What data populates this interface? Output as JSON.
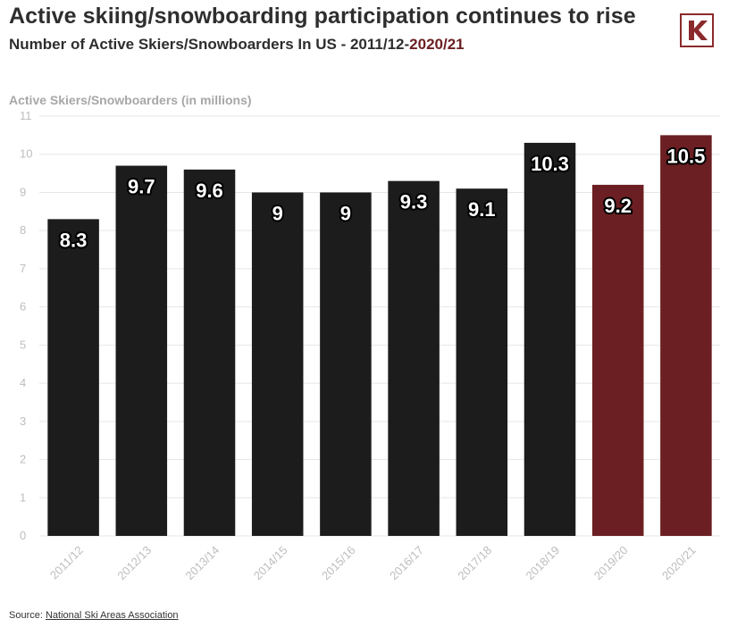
{
  "header": {
    "title": "Active skiing/snowboarding participation continues to rise",
    "subtitle_prefix": "Number of Active Skiers/Snowboarders In US - ",
    "subtitle_start": "2011/12",
    "subtitle_dash": "-",
    "subtitle_end": "2020/21"
  },
  "logo": {
    "icon": "k-logo-icon",
    "letter": "K"
  },
  "colors": {
    "bar_default": "#1c1c1c",
    "bar_highlight": "#6b1f22",
    "accent": "#6b1f22",
    "grid": "#e6e6e6",
    "tick": "#bdbdbd"
  },
  "footer": {
    "source_label": "Source: ",
    "source_link": "National Ski Areas Association"
  },
  "chart_data": {
    "type": "bar",
    "title": "Active skiing/snowboarding participation continues to rise",
    "subtitle": "Number of Active Skiers/Snowboarders In US - 2011/12-2020/21",
    "xlabel": "",
    "ylabel": "Active Skiers/Snowboarders (in millions)",
    "ylim": [
      0,
      11
    ],
    "yticks": [
      "0",
      "1",
      "2",
      "3",
      "4",
      "5",
      "6",
      "7",
      "8",
      "9",
      "10",
      "11"
    ],
    "grid": true,
    "legend": "none",
    "categories": [
      "2011/12",
      "2012/13",
      "2013/14",
      "2014/15",
      "2015/16",
      "2016/17",
      "2017/18",
      "2018/19",
      "2019/20",
      "2020/21"
    ],
    "values": [
      8.3,
      9.7,
      9.6,
      9,
      9,
      9.3,
      9.1,
      10.3,
      9.2,
      10.5
    ],
    "data_labels": [
      "8.3",
      "9.7",
      "9.6",
      "9",
      "9",
      "9.3",
      "9.1",
      "10.3",
      "9.2",
      "10.5"
    ],
    "highlighted_categories": [
      "2019/20",
      "2020/21"
    ]
  }
}
